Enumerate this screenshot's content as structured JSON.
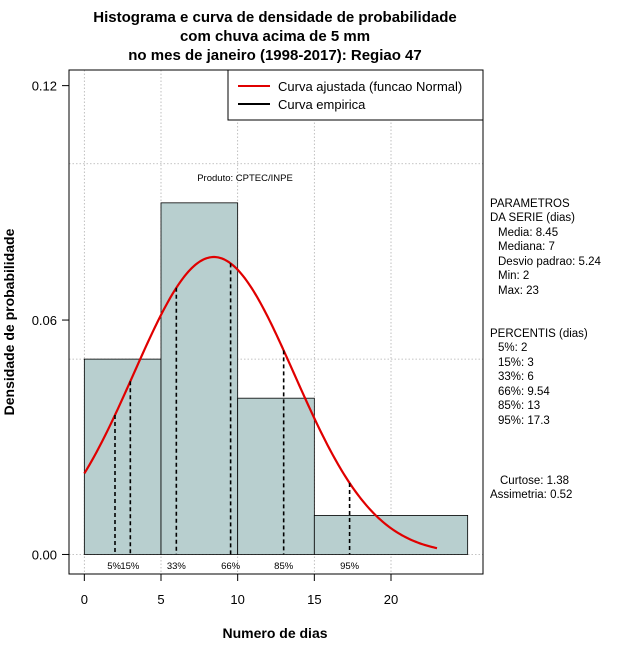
{
  "chart_data": {
    "type": "histogram",
    "title_lines": [
      "Histograma e curva de densidade de probabilidade",
      "com chuva acima de 5 mm",
      "no mes de janeiro (1998-2017): Regiao 47"
    ],
    "xlabel": "Numero de dias",
    "ylabel": "Densidade de probabilidade",
    "xlim": [
      -1,
      26
    ],
    "ylim": [
      -0.005,
      0.124
    ],
    "x_ticks": [
      0,
      5,
      10,
      15,
      20
    ],
    "y_ticks": [
      0.0,
      0.06,
      0.12
    ],
    "y_tick_labels": [
      "0.00",
      "0.06",
      "0.12"
    ],
    "grid": true,
    "x_grid": [
      0,
      5,
      10,
      15,
      20
    ],
    "y_grid": [
      0.0,
      0.05,
      0.1
    ],
    "bins": [
      {
        "from": 0,
        "to": 5,
        "density": 0.05
      },
      {
        "from": 5,
        "to": 10,
        "density": 0.09
      },
      {
        "from": 10,
        "to": 15,
        "density": 0.04
      },
      {
        "from": 15,
        "to": 25,
        "density": 0.01
      }
    ],
    "bar_color": "#b8cfcf",
    "normal_fit": {
      "mean": 8.45,
      "sd": 5.24,
      "x_from": 0,
      "x_to": 23,
      "color": "#e00000"
    },
    "percentile_markers": [
      {
        "x": 2,
        "label": "5%"
      },
      {
        "x": 3,
        "label": "15%"
      },
      {
        "x": 6,
        "label": "33%"
      },
      {
        "x": 9.54,
        "label": "66%"
      },
      {
        "x": 13,
        "label": "85%"
      },
      {
        "x": 17.3,
        "label": "95%"
      }
    ],
    "legend": {
      "position": "top-right",
      "items": [
        {
          "label": "Curva ajustada (funcao Normal)",
          "color": "#e00000"
        },
        {
          "label": "Curva empirica",
          "color": "#000000"
        }
      ]
    },
    "annotation": "Produto: CPTEC/INPE",
    "side_panel": {
      "params_title": [
        "PARAMETROS",
        "DA SERIE (dias)"
      ],
      "params": [
        "Media: 8.45",
        "Mediana: 7",
        "Desvio padrao: 5.24",
        "Min: 2",
        "Max: 23"
      ],
      "percentis_title": "PERCENTIS (dias)",
      "percentis": [
        "5%: 2",
        "15%: 3",
        "33%: 6",
        "66%: 9.54",
        "85%: 13",
        "95%: 17.3"
      ],
      "shape": [
        "Curtose: 1.38",
        "Assimetria: 0.52"
      ]
    }
  }
}
